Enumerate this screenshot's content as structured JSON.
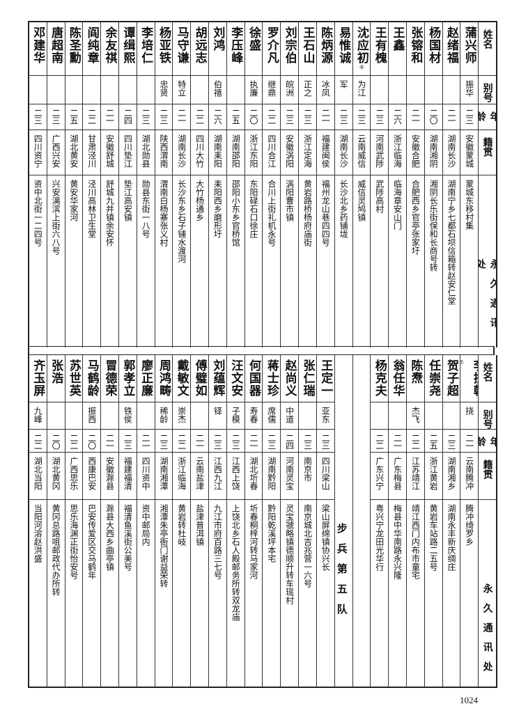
{
  "headers": {
    "name": "姓名",
    "alias": "别号",
    "age": "年龄",
    "origin": "籍贯",
    "address": "永久通讯处"
  },
  "top": {
    "rows": [
      {
        "name": "蒲兴师",
        "alias": "振华",
        "age": "二三",
        "origin": "安徽蒙城",
        "address": "蒙城东移村集"
      },
      {
        "name": "赵绪福",
        "alias": "",
        "age": "二一",
        "origin": "湖南长沙",
        "address": "湖南宁乡七都石坝信箱转赵安仁堂"
      },
      {
        "name": "杨国材",
        "alias": "",
        "age": "二〇",
        "origin": "湖南湘阴",
        "address": "湘阴长乐街保和长商号转"
      },
      {
        "name": "张镕和",
        "alias": "",
        "age": "二一",
        "origin": "安徽合肥",
        "address": "合肥西乡官亭张家圩"
      },
      {
        "name": "王鑫",
        "alias": "",
        "age": "二六",
        "origin": "浙江临海",
        "address": "临海章安山门"
      },
      {
        "name": "王有槐",
        "alias": "",
        "age": "二三",
        "origin": "河南武陟",
        "address": "武陟高村"
      },
      {
        "name": "沈应初",
        "note": "⑥",
        "alias": "为江",
        "age": "二三",
        "origin": "云南威信",
        "address": "威信灵鸠镇"
      },
      {
        "name": "易惟诚",
        "alias": "军",
        "age": "二三",
        "origin": "湖南长沙",
        "address": "长沙北乡药铺垅"
      },
      {
        "name": "陈炳源",
        "alias": "冰凤",
        "age": "二一",
        "origin": "福建闽侯",
        "address": "福州龙山巷四四号"
      },
      {
        "name": "王石山",
        "alias": "正之",
        "age": "二三",
        "origin": "浙江定海",
        "address": "黄岩路桥杨府庙街"
      },
      {
        "name": "刘宗伯",
        "alias": "皖洲",
        "age": "二三",
        "origin": "安徽涡阳",
        "address": "涡阳曹市镇"
      },
      {
        "name": "罗介凡",
        "alias": "继鼎",
        "age": "二二",
        "origin": "四川合江",
        "address": "合川上街礼机永号"
      },
      {
        "name": "徐盛",
        "alias": "执廉",
        "age": "二〇",
        "origin": "浙江东阳",
        "address": "东阳碌石口徐庄"
      },
      {
        "name": "李压峰",
        "alias": "",
        "age": "二五",
        "origin": "湖南邵阳",
        "address": "邵阳小东乡官桥馆"
      },
      {
        "name": "刘鸿",
        "alias": "伯禧",
        "age": "二六",
        "origin": "湖南耒阳",
        "address": "耒阳西乡磨形圩"
      },
      {
        "name": "胡远志",
        "alias": "",
        "age": "二二",
        "origin": "四川大竹",
        "address": "大竹杨通乡"
      },
      {
        "name": "马守谦",
        "alias": "特立",
        "age": "二一",
        "origin": "湖南长沙",
        "address": "长沙东乡石子铺水渡河"
      },
      {
        "name": "杨亚铁",
        "alias": "忠贤",
        "age": "二三",
        "origin": "陕西渭南",
        "address": "渭南白杨寨张义村"
      },
      {
        "name": "李培仁",
        "alias": "",
        "age": "二三",
        "origin": "湖北勋县",
        "address": "勋县东街一八号"
      },
      {
        "name": "谭缉熙",
        "alias": "",
        "age": "二四",
        "origin": "四川垫江",
        "address": "垫江高安镇"
      },
      {
        "name": "余友祺",
        "alias": "",
        "age": "二一",
        "origin": "安徽舒城",
        "address": "舒城九井镇余安怀"
      },
      {
        "name": "阎纯章",
        "alias": "",
        "age": "二二",
        "origin": "甘肃泾川",
        "address": "泾川高林卫生堂"
      },
      {
        "name": "陈圣勳",
        "alias": "",
        "age": "二五",
        "origin": "湖北黄安",
        "address": "黄安华家河"
      },
      {
        "name": "唐超南",
        "alias": "",
        "age": "二三",
        "origin": "广西兴安",
        "address": "兴安漓滨上街六八号"
      },
      {
        "name": "邓建华",
        "alias": "",
        "age": "二三",
        "origin": "四川资宁",
        "address": "资中北街一二四号"
      }
    ]
  },
  "bottom": {
    "rows_right": [
      {
        "name": "李振乾",
        "note": "⑦",
        "alias": "挠",
        "age": "二一",
        "origin": "云南腾冲",
        "address": "腾冲绮罗乡"
      },
      {
        "name": "贺子超",
        "alias": "",
        "age": "二三",
        "origin": "湖南湘乡",
        "address": "湖南永丰新庆绸庄"
      },
      {
        "name": "任崇尧",
        "alias": "",
        "age": "二五",
        "origin": "浙江黄岩",
        "address": "黄岩车站路二五号"
      },
      {
        "name": "陈焘",
        "alias": "杰飞",
        "age": "二二",
        "origin": "江苏靖江",
        "address": "靖江西门内布市童宅"
      },
      {
        "name": "翁任华",
        "alias": "",
        "age": "二一",
        "origin": "广东梅县",
        "address": "梅县中华南路永兴隆"
      },
      {
        "name": "杨克夫",
        "alias": "",
        "age": "二二",
        "origin": "广东兴宁",
        "address": "粤兴宁龙田光华行"
      }
    ],
    "section_title": "步兵第五队",
    "rows_left": [
      {
        "name": "王定一",
        "alias": "亚东",
        "age": "二三",
        "origin": "四川梁山",
        "address": "梁山屏绵镇协兴长"
      },
      {
        "name": "张仁瑞",
        "alias": "",
        "age": "二三",
        "origin": "南京市",
        "address": "南京城北吉兆营一六号"
      },
      {
        "name": "赵尚义",
        "alias": "中道",
        "age": "二四",
        "origin": "河南灵宝",
        "address": "灵宝虢略镇德顺升转车瑶村"
      },
      {
        "name": "蒋士珍",
        "alias": "席儒",
        "age": "二三",
        "origin": "湖南黔阳",
        "address": "黔阳乾溪坪本宅"
      },
      {
        "name": "何国器",
        "alias": "寿春",
        "age": "二一",
        "origin": "湖北圻春",
        "address": "圻春桐梓河转马家河"
      },
      {
        "name": "汪文安",
        "alias": "子模",
        "age": "二三",
        "origin": "江西上饶",
        "address": "上饶北乡石人殿邮务所转双龙庙"
      },
      {
        "name": "刘蕴辉",
        "alias": "铎",
        "age": "二三",
        "origin": "江西九江",
        "address": "九江市府百路三七号"
      },
      {
        "name": "傅璧如",
        "alias": "",
        "age": "二一",
        "origin": "云南盐津",
        "address": "盐津普洱镇"
      },
      {
        "name": "戴敏文",
        "alias": "崇杰",
        "age": "二二",
        "origin": "浙江临海",
        "address": "黄岩转杜岐"
      },
      {
        "name": "周鸿畴",
        "alias": "稀龄",
        "age": "二三",
        "origin": "湖南湘潭",
        "address": "湘潭朱亭衙门谢益荣转"
      },
      {
        "name": "廖正廉",
        "alias": "",
        "age": "二一",
        "origin": "四川资中",
        "address": "资中邮局内"
      },
      {
        "name": "郭孝立",
        "alias": "铁侯",
        "age": "二三",
        "origin": "福建福清",
        "address": "福清鱼溪街公美号"
      },
      {
        "name": "冒德荣",
        "alias": "",
        "age": "二一",
        "origin": "安徽滁县",
        "address": "滁县大西乡曲亭镇"
      },
      {
        "name": "马鹤龄",
        "alias": "振西",
        "age": "二〇",
        "origin": "西康巴安",
        "address": "巴安传爱区交马鹤年"
      },
      {
        "name": "苏世英",
        "alias": "",
        "age": "二二",
        "origin": "广西思乐",
        "address": "思乐海渊正街怡安号"
      },
      {
        "name": "张浩",
        "alias": "",
        "age": "二〇",
        "origin": "湖北黄冈",
        "address": "黄冈总路咀邮政代办所转"
      },
      {
        "name": "齐玉屏",
        "alias": "九峰",
        "age": "二二",
        "origin": "湖北当阳",
        "address": "当阳河溶赵洪盛"
      }
    ]
  },
  "page_number": "1024"
}
